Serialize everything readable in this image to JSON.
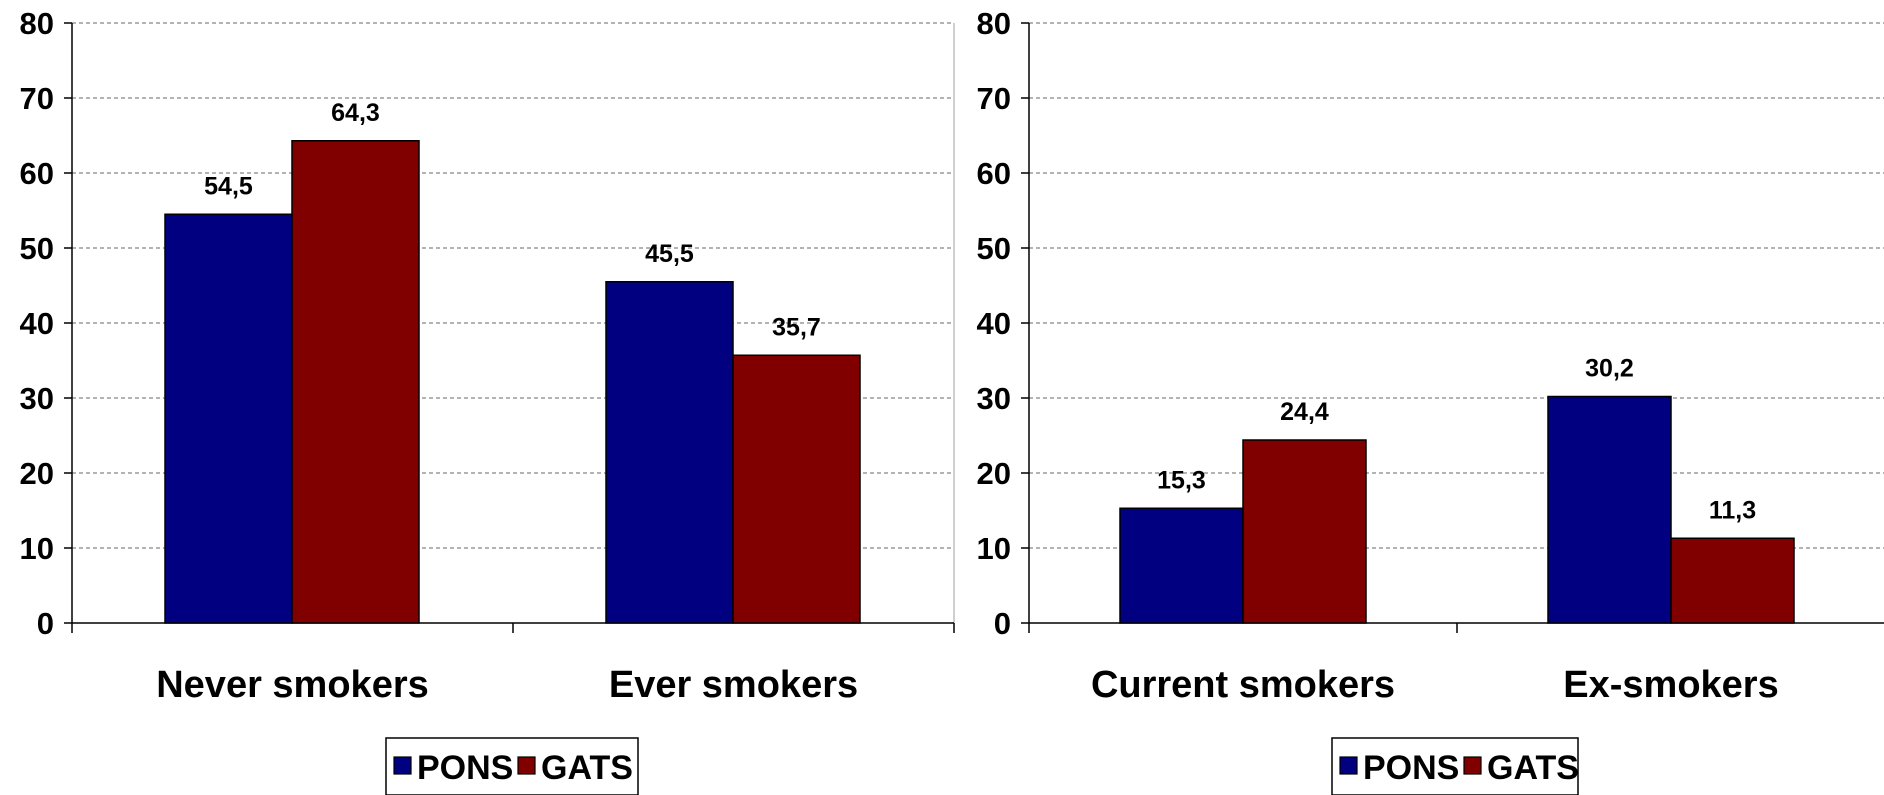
{
  "chart_data": [
    {
      "type": "bar",
      "categories": [
        "Never smokers",
        "Ever smokers"
      ],
      "series": [
        {
          "name": "PONS",
          "values": [
            54.5,
            45.5
          ],
          "labels": [
            "54,5",
            "45,5"
          ]
        },
        {
          "name": "GATS",
          "values": [
            64.3,
            35.7
          ],
          "labels": [
            "64,3",
            "35,7"
          ]
        }
      ],
      "yticks": [
        "0",
        "10",
        "20",
        "30",
        "40",
        "50",
        "60",
        "70",
        "80"
      ],
      "ylim": [
        0,
        80
      ],
      "grid": "horizontal dashed",
      "legend_position": "bottom"
    },
    {
      "type": "bar",
      "categories": [
        "Current smokers",
        "Ex-smokers"
      ],
      "series": [
        {
          "name": "PONS",
          "values": [
            15.3,
            30.2
          ],
          "labels": [
            "15,3",
            "30,2"
          ]
        },
        {
          "name": "GATS",
          "values": [
            24.4,
            11.3
          ],
          "labels": [
            "24,4",
            "11,3"
          ]
        }
      ],
      "yticks": [
        "0",
        "10",
        "20",
        "30",
        "40",
        "50",
        "60",
        "70",
        "80"
      ],
      "ylim": [
        0,
        80
      ],
      "grid": "horizontal dashed",
      "legend_position": "bottom"
    }
  ],
  "colors": {
    "PONS": "#000080",
    "GATS": "#800000"
  }
}
